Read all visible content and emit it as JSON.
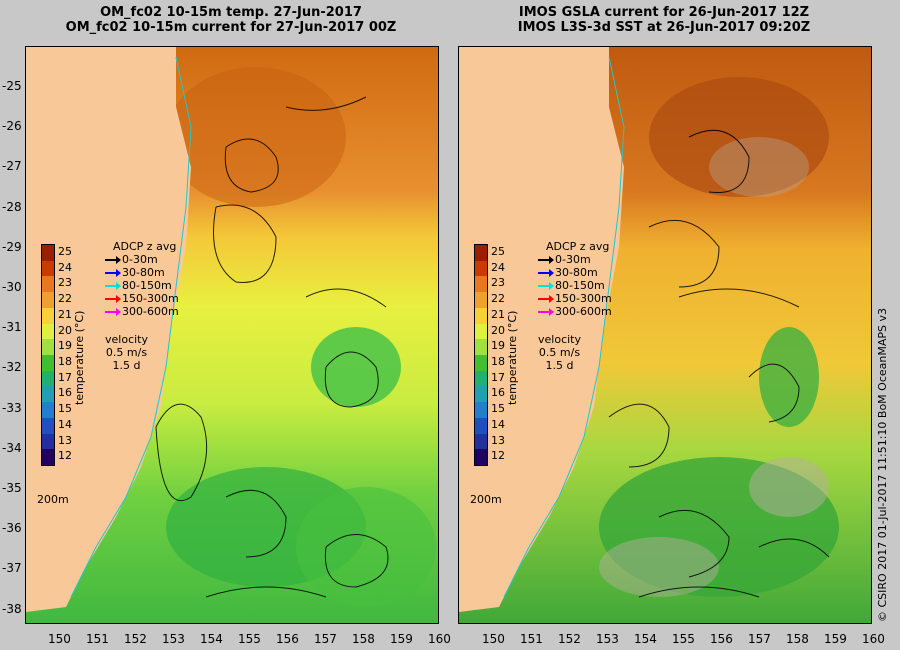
{
  "left_panel": {
    "title_line1": "OM_fc02 10-15m temp. 27-Jun-2017",
    "title_line2": "OM_fc02 10-15m current for 27-Jun-2017 00Z"
  },
  "right_panel": {
    "title_line1": "IMOS GSLA current for 26-Jun-2017 12Z",
    "title_line2": "IMOS L3S-3d SST at 26-Jun-2017 09:20Z"
  },
  "latitude_labels": [
    "-25",
    "-26",
    "-27",
    "-28",
    "-29",
    "-30",
    "-31",
    "-32",
    "-33",
    "-34",
    "-35",
    "-36",
    "-37",
    "-38"
  ],
  "longitude_labels": [
    "150",
    "151",
    "152",
    "153",
    "154",
    "155",
    "156",
    "157",
    "158",
    "159",
    "160"
  ],
  "colorbar": {
    "ticks": [
      "25",
      "24",
      "23",
      "22",
      "21",
      "20",
      "19",
      "18",
      "17",
      "16",
      "15",
      "14",
      "13",
      "12"
    ],
    "title": "temperature (°C)",
    "colors": [
      "#9a1e00",
      "#c83c00",
      "#e87820",
      "#f0a030",
      "#f8d038",
      "#e0f040",
      "#a0e040",
      "#40c030",
      "#20b070",
      "#20a0b0",
      "#2080d0",
      "#2050c0",
      "#2030a0",
      "#200060"
    ]
  },
  "legend": {
    "header": "ADCP z avg",
    "items": [
      {
        "label": "0-30m",
        "color": "#000000"
      },
      {
        "label": "30-80m",
        "color": "#0000ff"
      },
      {
        "label": "80-150m",
        "color": "#00e0e0"
      },
      {
        "label": "150-300m",
        "color": "#ff0000"
      },
      {
        "label": "300-600m",
        "color": "#ff00ff"
      }
    ]
  },
  "velocity_legend": {
    "line1": "velocity",
    "line2": "0.5 m/s",
    "line3": "1.5 d"
  },
  "isobath_label": "200m",
  "credit": "© CSIRO 2017   01-Jul-2017 11:51:10 BoM OceanMAPS v3"
}
